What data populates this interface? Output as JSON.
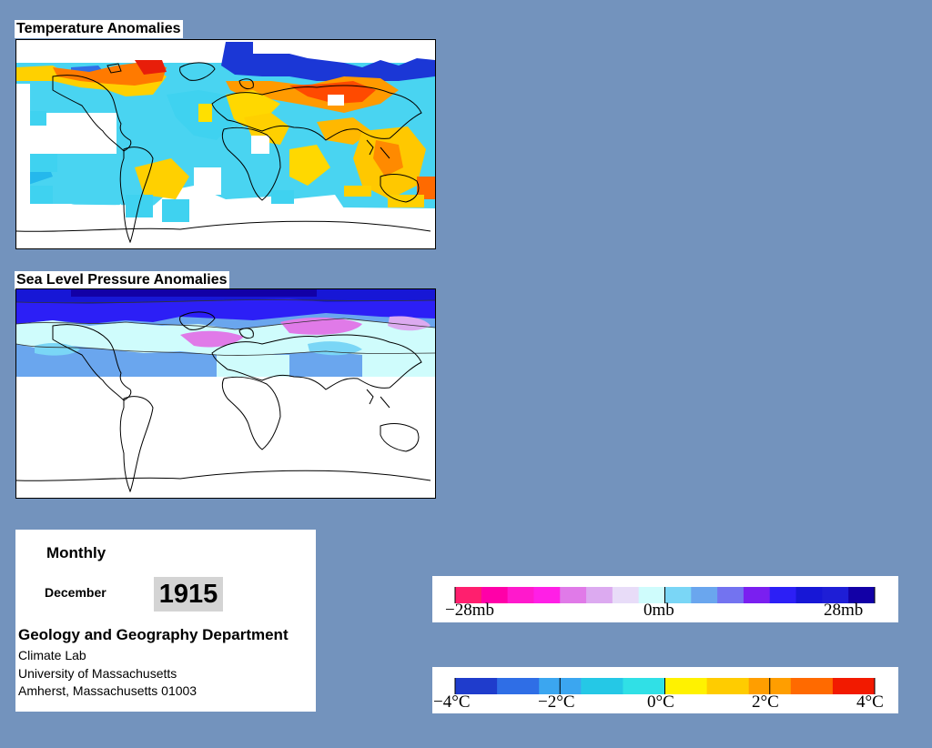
{
  "temperature_map": {
    "title": "Temperature Anomalies"
  },
  "pressure_map": {
    "title": "Sea Level Pressure Anomalies"
  },
  "info": {
    "period": "Monthly",
    "month": "December",
    "year": "1915",
    "department": "Geology and Geography Department",
    "lab": "Climate Lab",
    "university": "University of Massachusetts",
    "address": "Amherst, Massachusetts 01003"
  },
  "pressure_legend": {
    "ticks": [
      "−28mb",
      "0mb",
      "28mb"
    ],
    "colors": [
      "#ff1f6e",
      "#ff00a8",
      "#ff19cc",
      "#ff1fe6",
      "#e07ae8",
      "#dcaaf0",
      "#e8dcf8",
      "#cffcfc",
      "#7ad6f6",
      "#6aa6ee",
      "#7373f0",
      "#7a1ff0",
      "#2c1ff6",
      "#1717d6",
      "#1e1ed6",
      "#1200a6"
    ]
  },
  "temperature_legend": {
    "ticks": [
      "−4°C",
      "−2°C",
      "0°C",
      "2°C",
      "4°C"
    ],
    "colors": [
      "#1f3ccc",
      "#2f6ee6",
      "#3ba6f0",
      "#25c8e6",
      "#30e0e6",
      "#fff200",
      "#ffcc00",
      "#ff9e00",
      "#ff6a00",
      "#f21a00"
    ]
  },
  "colors": {
    "background": "#7393bd"
  }
}
